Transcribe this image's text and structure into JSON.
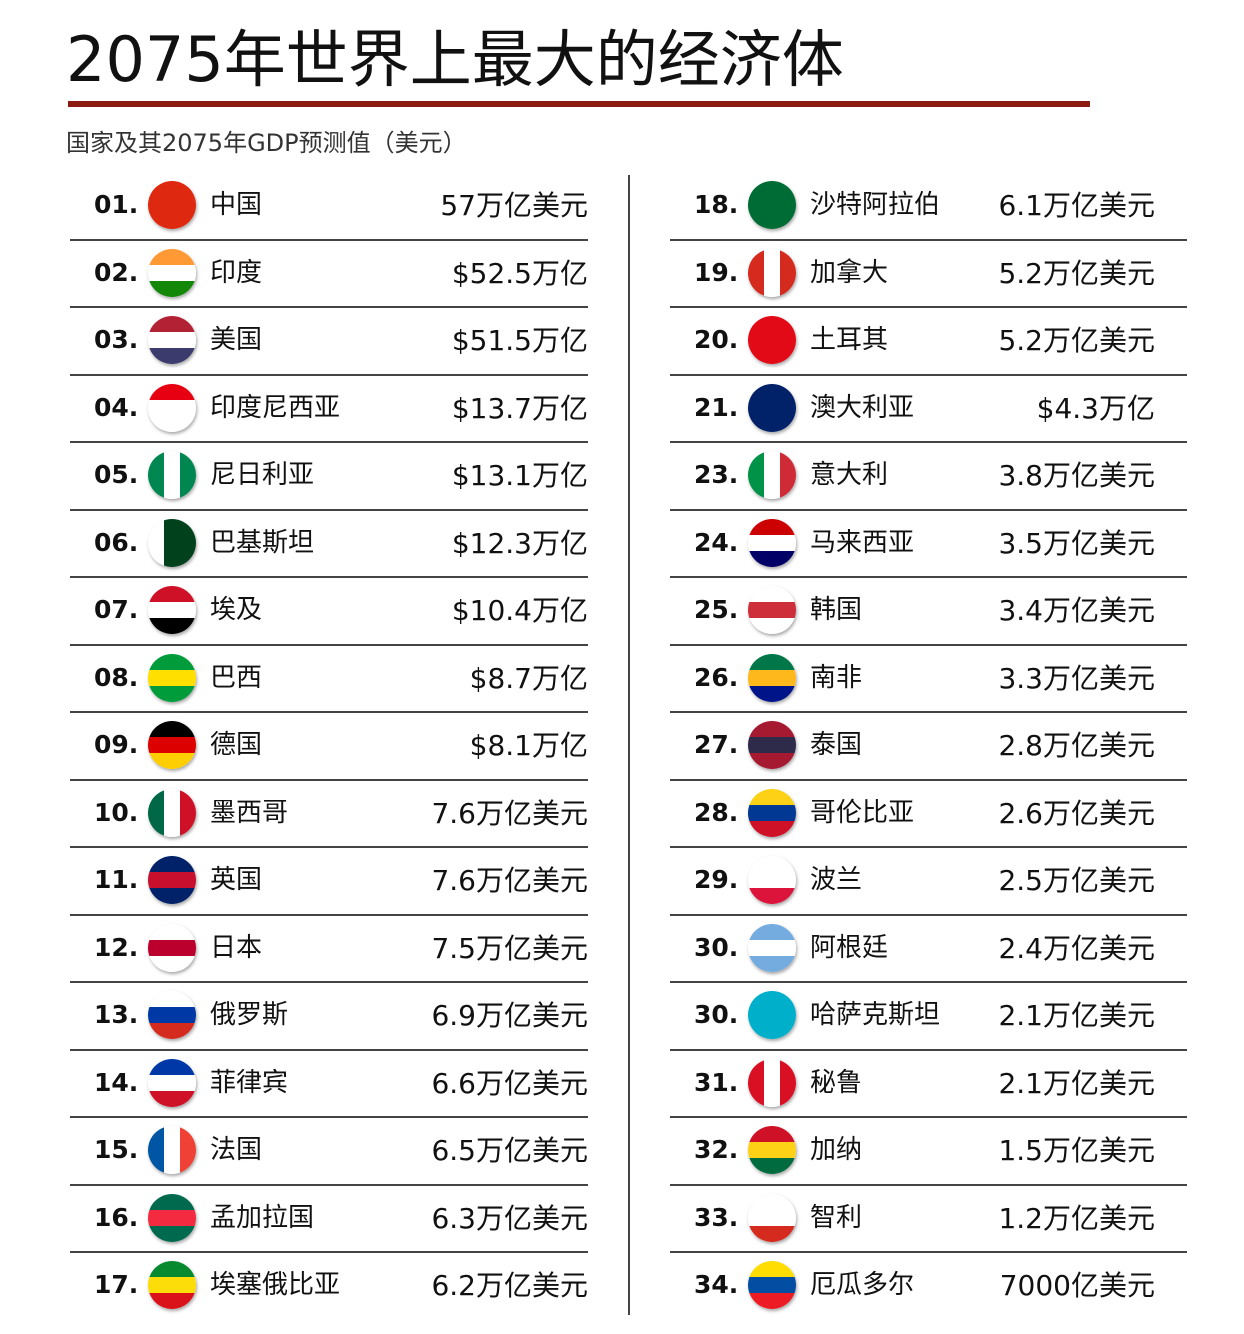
{
  "title": "2075年世界上最大的经济体",
  "subtitle": "国家及其2075年GDP预测值（美元）",
  "left": [
    {
      "rank": "01.",
      "country": "中国",
      "gdp": "57万亿美元"
    },
    {
      "rank": "02.",
      "country": "印度",
      "gdp": "$52.5万亿"
    },
    {
      "rank": "03.",
      "country": "美国",
      "gdp": "$51.5万亿"
    },
    {
      "rank": "04.",
      "country": "印度尼西亚",
      "gdp": "$13.7万亿"
    },
    {
      "rank": "05.",
      "country": "尼日利亚",
      "gdp": "$13.1万亿"
    },
    {
      "rank": "06.",
      "country": "巴基斯坦",
      "gdp": "$12.3万亿"
    },
    {
      "rank": "07.",
      "country": "埃及",
      "gdp": "$10.4万亿"
    },
    {
      "rank": "08.",
      "country": "巴西",
      "gdp": "$8.7万亿"
    },
    {
      "rank": "09.",
      "country": "德国",
      "gdp": "$8.1万亿"
    },
    {
      "rank": "10.",
      "country": "墨西哥",
      "gdp": "7.6万亿美元"
    },
    {
      "rank": "11.",
      "country": "英国",
      "gdp": "7.6万亿美元"
    },
    {
      "rank": "12.",
      "country": "日本",
      "gdp": "7.5万亿美元"
    },
    {
      "rank": "13.",
      "country": "俄罗斯",
      "gdp": "6.9万亿美元"
    },
    {
      "rank": "14.",
      "country": "菲律宾",
      "gdp": "6.6万亿美元"
    },
    {
      "rank": "15.",
      "country": "法国",
      "gdp": "6.5万亿美元"
    },
    {
      "rank": "16.",
      "country": "孟加拉国",
      "gdp": "6.3万亿美元"
    },
    {
      "rank": "17.",
      "country": "埃塞俄比亚",
      "gdp": "6.2万亿美元"
    }
  ],
  "right": [
    {
      "rank": "18.",
      "country": "沙特阿拉伯",
      "gdp": "6.1万亿美元"
    },
    {
      "rank": "19.",
      "country": "加拿大",
      "gdp": "5.2万亿美元"
    },
    {
      "rank": "20.",
      "country": "土耳其",
      "gdp": "5.2万亿美元"
    },
    {
      "rank": "21.",
      "country": "澳大利亚",
      "gdp": "$4.3万亿"
    },
    {
      "rank": "23.",
      "country": "意大利",
      "gdp": "3.8万亿美元"
    },
    {
      "rank": "24.",
      "country": "马来西亚",
      "gdp": "3.5万亿美元"
    },
    {
      "rank": "25.",
      "country": "韩国",
      "gdp": "3.4万亿美元"
    },
    {
      "rank": "26.",
      "country": "南非",
      "gdp": "3.3万亿美元"
    },
    {
      "rank": "27.",
      "country": "泰国",
      "gdp": "2.8万亿美元"
    },
    {
      "rank": "28.",
      "country": "哥伦比亚",
      "gdp": "2.6万亿美元"
    },
    {
      "rank": "29.",
      "country": "波兰",
      "gdp": "2.5万亿美元"
    },
    {
      "rank": "30.",
      "country": "阿根廷",
      "gdp": "2.4万亿美元"
    },
    {
      "rank": "30.",
      "country": "哈萨克斯坦",
      "gdp": "2.1万亿美元"
    },
    {
      "rank": "31.",
      "country": "秘鲁",
      "gdp": "2.1万亿美元"
    },
    {
      "rank": "32.",
      "country": "加纳",
      "gdp": "1.5万亿美元"
    },
    {
      "rank": "33.",
      "country": "智利",
      "gdp": "1.2万亿美元"
    },
    {
      "rank": "34.",
      "country": "厄瓜多尔",
      "gdp": "7000亿美元"
    }
  ]
}
